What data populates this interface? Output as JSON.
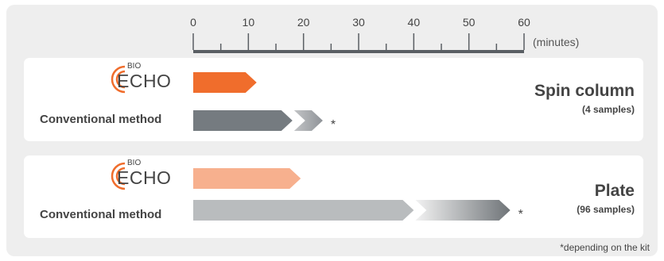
{
  "chart_data": {
    "type": "bar",
    "axis": {
      "min": 0,
      "max": 60,
      "unit_label": "(minutes)",
      "ticks": [
        "0",
        "10",
        "20",
        "30",
        "40",
        "50",
        "60"
      ]
    },
    "groups": [
      {
        "title": "Spin column",
        "subtitle": "(4 samples)",
        "rows": [
          {
            "label_logo_top": "BIO",
            "label_logo_main": "ECHO",
            "segments": [
              {
                "value": 11.5,
                "color": "#f06d2c"
              }
            ]
          },
          {
            "label": "Conventional method",
            "segments": [
              {
                "value": 18,
                "color": "#757b80"
              },
              {
                "value": 5.5,
                "color": "#a9acaf"
              }
            ],
            "marker": "*"
          }
        ]
      },
      {
        "title": "Plate",
        "subtitle": "(96 samples)",
        "rows": [
          {
            "label_logo_top": "BIO",
            "label_logo_main": "ECHO",
            "segments": [
              {
                "value": 19.5,
                "color": "#f7b08e"
              }
            ]
          },
          {
            "label": "Conventional method",
            "segments": [
              {
                "value": 40,
                "color": "#b9bcbe"
              },
              {
                "value": 17.5,
                "color": "#6f7478"
              }
            ],
            "marker": "*"
          }
        ]
      }
    ],
    "footnote": "*depending on the kit"
  }
}
